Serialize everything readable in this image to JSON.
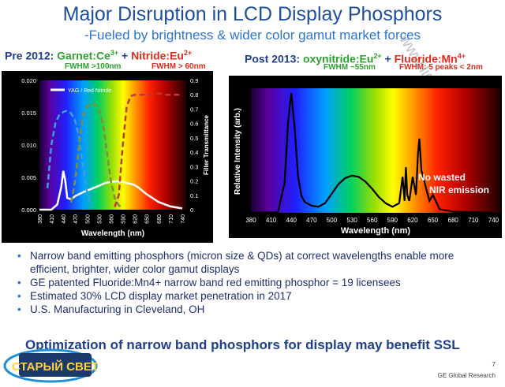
{
  "slide": {
    "title": "Major Disruption in LCD Display Phosphors",
    "subtitle": "-Fueled by brightness & wider color gamut market forces",
    "page_number": "7",
    "footer": "GE Global Research",
    "bottom_line": "Optimization of narrow band phosphors for display may benefit SSL",
    "watermark": "www.lightning.ru",
    "logo_text": "СТАРЫЙ СВЕТ"
  },
  "left": {
    "header_prefix": "Pre 2012:",
    "header_garnet": "Garnet:Ce",
    "header_garnet_sup": "3+",
    "header_plus": " + ",
    "header_nitride": "Nitride:Eu",
    "header_nitride_sup": "2+",
    "fwhm_garnet": "FWHM >100nm",
    "fwhm_nitride": "FWHM > 60nm"
  },
  "right": {
    "header_prefix": "Post 2013:",
    "header_oxy": "oxynitride:Eu",
    "header_oxy_sup": "2+",
    "header_plus": " + ",
    "header_fluoride": "Fluoride:Mn",
    "header_fluoride_sup": "4+",
    "fwhm_oxy": "FWHM ~55nm",
    "fwhm_fluoride": "FWHM: 5 peaks < 2nm",
    "annotation_line1": "No wasted",
    "annotation_line2": "NIR emission"
  },
  "bullets": [
    "Narrow band emitting phosphors (micron size & QDs) at correct wavelengths enable more efficient, brighter, wider color gamut displays",
    "GE patented Fluoride:Mn4+ narrow band red emitting phosphor = 19 licensees",
    "Estimated 30% LCD display market penetration in 2017",
    "U.S. Manufacturing in Cleveland, OH"
  ],
  "colors": {
    "title": "#1f4e9c",
    "subtitle": "#2e75d0",
    "green_phosphor": "#2ea12e",
    "red_phosphor": "#e02b1f",
    "text_dark": "#1f2f6e"
  },
  "chart_data": [
    {
      "type": "line",
      "xlabel": "Wavelength (nm)",
      "ylabel_right": "Filter Transmittance",
      "x_ticks": [
        "380",
        "410",
        "440",
        "470",
        "500",
        "530",
        "560",
        "590",
        "620",
        "650",
        "680",
        "710",
        "740"
      ],
      "y_ticks_left": [
        "0.000",
        "0.005",
        "0.010",
        "0.015",
        "0.020"
      ],
      "y_ticks_right": [
        "0",
        "0.1",
        "0.2",
        "0.3",
        "0.4",
        "0.5",
        "0.6",
        "0.7",
        "0.8",
        "0.9"
      ],
      "xlim": [
        380,
        750
      ],
      "ylim_left": [
        0,
        0.02
      ],
      "ylim_right": [
        0,
        0.9
      ],
      "legend": "YAG / Red Nitride",
      "legend_position": "top-left",
      "series": [
        {
          "name": "YAG / Red Nitride",
          "axis": "left",
          "color": "#ffffff",
          "style": "solid",
          "x": [
            380,
            410,
            425,
            435,
            440,
            445,
            450,
            460,
            470,
            490,
            510,
            530,
            545,
            560,
            575,
            590,
            600,
            610,
            620,
            630,
            650,
            680,
            710,
            740
          ],
          "y": [
            0,
            0,
            0.0008,
            0.0035,
            0.006,
            0.0045,
            0.0018,
            0.0016,
            0.0021,
            0.0027,
            0.0032,
            0.0037,
            0.0041,
            0.0043,
            0.0044,
            0.0043,
            0.0041,
            0.004,
            0.0038,
            0.0034,
            0.0024,
            0.0012,
            0.0005,
            0.0002
          ]
        },
        {
          "axis": "right",
          "color": "#3a9ee0",
          "style": "dashed",
          "x": [
            400,
            410,
            420,
            430,
            440,
            450,
            460,
            470,
            480,
            490,
            500,
            510
          ],
          "y": [
            0.15,
            0.45,
            0.6,
            0.66,
            0.68,
            0.69,
            0.67,
            0.62,
            0.5,
            0.3,
            0.12,
            0.02
          ]
        },
        {
          "axis": "right",
          "color": "#7f8f3a",
          "style": "dashed",
          "x": [
            460,
            470,
            480,
            490,
            500,
            510,
            520,
            530,
            540,
            550,
            560,
            570,
            580,
            590
          ],
          "y": [
            0.05,
            0.2,
            0.45,
            0.65,
            0.72,
            0.74,
            0.73,
            0.7,
            0.6,
            0.4,
            0.2,
            0.08,
            0.03,
            0.01
          ]
        },
        {
          "axis": "right",
          "color": "#c0392b",
          "style": "dashed",
          "x": [
            570,
            580,
            590,
            600,
            610,
            620,
            640,
            660,
            680,
            700,
            720,
            740
          ],
          "y": [
            0.02,
            0.1,
            0.45,
            0.72,
            0.79,
            0.8,
            0.8,
            0.8,
            0.81,
            0.8,
            0.8,
            0.8
          ]
        }
      ]
    },
    {
      "type": "line",
      "xlabel": "Wavelength (nm)",
      "ylabel": "Relative Intensity (arb.)",
      "x_ticks": [
        "380",
        "410",
        "440",
        "470",
        "500",
        "530",
        "560",
        "590",
        "620",
        "650",
        "680",
        "710",
        "740"
      ],
      "xlim": [
        380,
        750
      ],
      "series": [
        {
          "color": "#000000",
          "style": "solid",
          "x": [
            380,
            420,
            430,
            435,
            440,
            445,
            450,
            455,
            460,
            470,
            480,
            490,
            500,
            510,
            520,
            530,
            540,
            550,
            560,
            570,
            580,
            590,
            600,
            605,
            608,
            610,
            612,
            615,
            620,
            625,
            628,
            630,
            633,
            635,
            640,
            645,
            650,
            660,
            680,
            740
          ],
          "y": [
            0,
            0.005,
            0.25,
            0.75,
            1.0,
            0.7,
            0.3,
            0.14,
            0.09,
            0.06,
            0.05,
            0.08,
            0.16,
            0.24,
            0.29,
            0.31,
            0.3,
            0.26,
            0.2,
            0.13,
            0.08,
            0.05,
            0.08,
            0.3,
            0.1,
            0.38,
            0.15,
            0.1,
            0.3,
            0.15,
            0.5,
            0.62,
            0.35,
            0.32,
            0.2,
            0.1,
            0.15,
            0.03,
            0.01,
            0
          ]
        }
      ]
    }
  ]
}
